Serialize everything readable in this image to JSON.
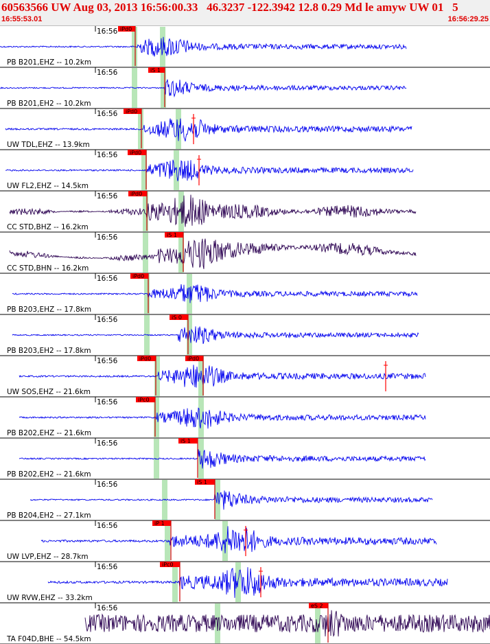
{
  "header": {
    "title": "60563566 UW Aug 03, 2013 16:56:00.33   46.3237 -122.3942 12.8 0.29 Md le amyw UW 01   5",
    "start_time": "16:55:53.01",
    "end_time": "16:56:29.25"
  },
  "chart_data": {
    "type": "seismogram",
    "time_window": [
      "16:55:53.01",
      "16:56:29.25"
    ],
    "minute_tick_label": "16:56",
    "colors": {
      "trace_blue": "#0000ee",
      "trace_dark": "#2a0050",
      "pick_box": "#ff0000",
      "window": "#b8e6b8",
      "grid": "#000000"
    },
    "traces": [
      {
        "label": "PB B201,EHZ -- 10.2km",
        "color": "#0000ee",
        "pick": "iPd0",
        "amp": 0.5
      },
      {
        "label": "PB B201,EH2 -- 10.2km",
        "color": "#0000ee",
        "pick": "iS 1",
        "amp": 0.45
      },
      {
        "label": "UW TDL,EHZ -- 13.9km",
        "color": "#0000ee",
        "pick": "iPd0",
        "amp": 0.6
      },
      {
        "label": "UW FL2,EHZ -- 14.5km",
        "color": "#0000ee",
        "pick": "iPd0",
        "amp": 0.55
      },
      {
        "label": "CC STD,BHZ -- 16.2km",
        "color": "#2a0050",
        "pick": "iPd0",
        "amp": 0.85
      },
      {
        "label": "CC STD,BHN -- 16.2km",
        "color": "#2a0050",
        "pick": "iS 1",
        "amp": 0.8
      },
      {
        "label": "PB B203,EHZ -- 17.8km",
        "color": "#0000ee",
        "pick": "iPd0",
        "amp": 0.5
      },
      {
        "label": "PB B203,EH2 -- 17.8km",
        "color": "#0000ee",
        "pick": "iS 0",
        "amp": 0.45
      },
      {
        "label": "UW SOS,EHZ -- 21.6km",
        "color": "#0000ee",
        "pick": "iPd0",
        "amp": 0.6
      },
      {
        "label": "PB B202,EHZ -- 21.6km",
        "color": "#0000ee",
        "pick": "iPc0",
        "amp": 0.55
      },
      {
        "label": "PB B202,EH2 -- 21.6km",
        "color": "#0000ee",
        "pick": "iS 1",
        "amp": 0.5
      },
      {
        "label": "PB B204,EH2 -- 27.1km",
        "color": "#0000ee",
        "pick": "iS 1",
        "amp": 0.5
      },
      {
        "label": "UW LVP,EHZ -- 28.7km",
        "color": "#0000ee",
        "pick": "iP 1",
        "amp": 0.75
      },
      {
        "label": "UW RVW,EHZ -- 33.2km",
        "color": "#0000ee",
        "pick": "iPc0",
        "amp": 0.8
      },
      {
        "label": "TA F04D,BHE -- 54.5km",
        "color": "#2a0050",
        "pick": "eS 2",
        "amp": 0.9
      }
    ]
  }
}
